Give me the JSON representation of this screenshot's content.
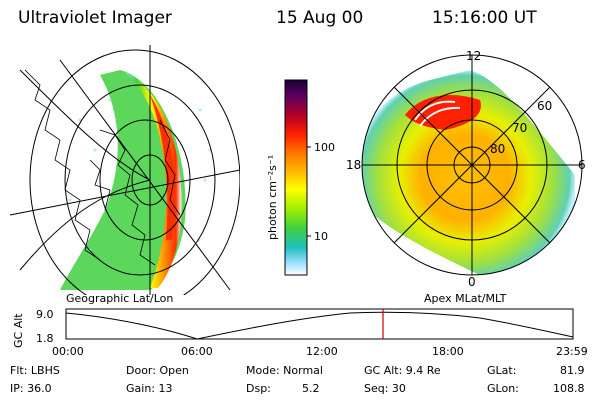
{
  "header": {
    "instrument": "Ultraviolet Imager",
    "date": "15 Aug 00",
    "time": "15:16:00 UT"
  },
  "colorbar": {
    "unit_label": "photon cm⁻²s⁻¹",
    "ticks": [
      "100",
      "10"
    ],
    "scale": "log",
    "colors": [
      "#1a0030",
      "#5a0060",
      "#b00028",
      "#ff2000",
      "#ff7a00",
      "#ffc000",
      "#ffff00",
      "#a0f000",
      "#40d040",
      "#20c0c0",
      "#a0e0ff",
      "#ffffff"
    ]
  },
  "left_panel": {
    "label": "Geographic Lat/Lon"
  },
  "right_panel": {
    "label": "Apex MLat/MLT",
    "mlt_labels": {
      "top": "12",
      "left": "18",
      "right": "6",
      "bottom": "0"
    },
    "lat_labels": [
      "60",
      "70",
      "80"
    ]
  },
  "altitude_plot": {
    "ylabel": "GC Alt",
    "y_ticks": [
      "9.0",
      "1.8"
    ],
    "x_ticks": [
      "00:00",
      "06:00",
      "12:00",
      "18:00",
      "23:59"
    ],
    "current_time_marker_color": "#cc0000"
  },
  "info": {
    "flt": "Flt: LBHS",
    "ip": "IP: 36.0",
    "door": "Door: Open",
    "gain": "Gain: 13",
    "mode": "Mode: Normal",
    "dsp": "Dsp:",
    "dsp_value": "5.2",
    "gc_alt": "GC Alt: 9.4 Re",
    "seq": "Seq: 30",
    "glat": "GLat:",
    "glat_value": "81.9",
    "glon": "GLon:",
    "glon_value": "108.8"
  }
}
